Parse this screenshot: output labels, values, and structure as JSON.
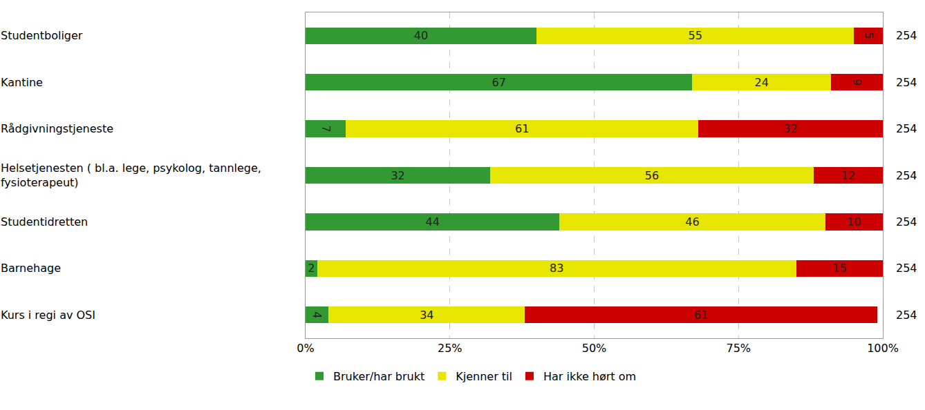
{
  "chart_data": {
    "type": "bar",
    "orientation": "horizontal",
    "stacked": true,
    "data_labels": true,
    "grid": true,
    "legend": "bottom left",
    "categories": [
      "Studentboliger",
      "Kantine",
      "Rådgivningstjeneste",
      "Helsetjenesten ( bl.a. lege, psykolog, tannlege, fysioterapeut)",
      "Studentidretten",
      "Barnehage",
      "Kurs i regi av OSI"
    ],
    "series": [
      {
        "name": "Bruker/har brukt",
        "color": "#339933",
        "values": [
          40,
          67,
          7,
          32,
          44,
          2,
          4
        ]
      },
      {
        "name": "Kjenner til",
        "color": "#e6e600",
        "values": [
          55,
          24,
          61,
          56,
          46,
          83,
          34
        ]
      },
      {
        "name": "Har ikke hørt om",
        "color": "#cc0000",
        "values": [
          5,
          9,
          32,
          12,
          10,
          15,
          61
        ]
      }
    ],
    "totals": [
      254,
      254,
      254,
      254,
      254,
      254,
      254
    ],
    "xlim": [
      0,
      100
    ],
    "xticks": [
      {
        "value": 0,
        "label": "0%"
      },
      {
        "value": 25,
        "label": "25%"
      },
      {
        "value": 50,
        "label": "50%"
      },
      {
        "value": 75,
        "label": "75%"
      },
      {
        "value": 100,
        "label": "100%"
      }
    ]
  }
}
